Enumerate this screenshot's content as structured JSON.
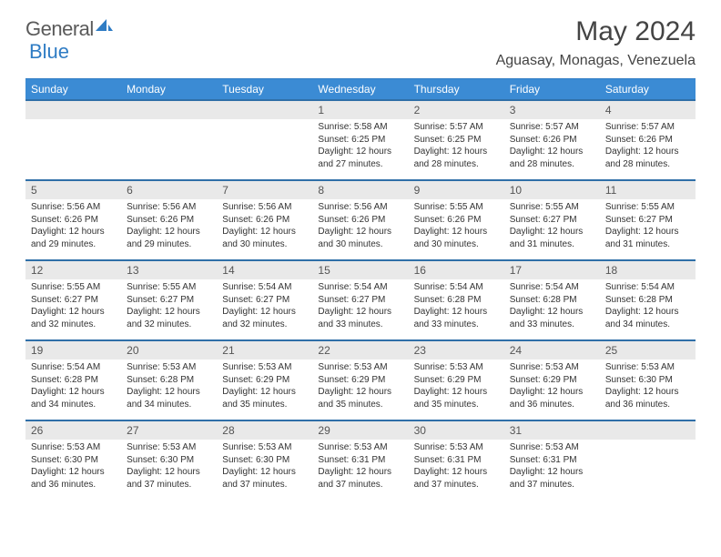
{
  "brand": {
    "name_part1": "General",
    "name_part2": "Blue"
  },
  "title": "May 2024",
  "location": "Aguasay, Monagas, Venezuela",
  "colors": {
    "header_bg": "#3b8bd4",
    "divider": "#2f7cc4",
    "daynum_bg": "#e9e9e9",
    "row_border": "#2f6fa8",
    "text": "#333333",
    "background": "#ffffff"
  },
  "day_headers": [
    "Sunday",
    "Monday",
    "Tuesday",
    "Wednesday",
    "Thursday",
    "Friday",
    "Saturday"
  ],
  "weeks": [
    [
      {
        "n": "",
        "sr": "",
        "ss": "",
        "dl": ""
      },
      {
        "n": "",
        "sr": "",
        "ss": "",
        "dl": ""
      },
      {
        "n": "",
        "sr": "",
        "ss": "",
        "dl": ""
      },
      {
        "n": "1",
        "sr": "Sunrise: 5:58 AM",
        "ss": "Sunset: 6:25 PM",
        "dl": "Daylight: 12 hours and 27 minutes."
      },
      {
        "n": "2",
        "sr": "Sunrise: 5:57 AM",
        "ss": "Sunset: 6:25 PM",
        "dl": "Daylight: 12 hours and 28 minutes."
      },
      {
        "n": "3",
        "sr": "Sunrise: 5:57 AM",
        "ss": "Sunset: 6:26 PM",
        "dl": "Daylight: 12 hours and 28 minutes."
      },
      {
        "n": "4",
        "sr": "Sunrise: 5:57 AM",
        "ss": "Sunset: 6:26 PM",
        "dl": "Daylight: 12 hours and 28 minutes."
      }
    ],
    [
      {
        "n": "5",
        "sr": "Sunrise: 5:56 AM",
        "ss": "Sunset: 6:26 PM",
        "dl": "Daylight: 12 hours and 29 minutes."
      },
      {
        "n": "6",
        "sr": "Sunrise: 5:56 AM",
        "ss": "Sunset: 6:26 PM",
        "dl": "Daylight: 12 hours and 29 minutes."
      },
      {
        "n": "7",
        "sr": "Sunrise: 5:56 AM",
        "ss": "Sunset: 6:26 PM",
        "dl": "Daylight: 12 hours and 30 minutes."
      },
      {
        "n": "8",
        "sr": "Sunrise: 5:56 AM",
        "ss": "Sunset: 6:26 PM",
        "dl": "Daylight: 12 hours and 30 minutes."
      },
      {
        "n": "9",
        "sr": "Sunrise: 5:55 AM",
        "ss": "Sunset: 6:26 PM",
        "dl": "Daylight: 12 hours and 30 minutes."
      },
      {
        "n": "10",
        "sr": "Sunrise: 5:55 AM",
        "ss": "Sunset: 6:27 PM",
        "dl": "Daylight: 12 hours and 31 minutes."
      },
      {
        "n": "11",
        "sr": "Sunrise: 5:55 AM",
        "ss": "Sunset: 6:27 PM",
        "dl": "Daylight: 12 hours and 31 minutes."
      }
    ],
    [
      {
        "n": "12",
        "sr": "Sunrise: 5:55 AM",
        "ss": "Sunset: 6:27 PM",
        "dl": "Daylight: 12 hours and 32 minutes."
      },
      {
        "n": "13",
        "sr": "Sunrise: 5:55 AM",
        "ss": "Sunset: 6:27 PM",
        "dl": "Daylight: 12 hours and 32 minutes."
      },
      {
        "n": "14",
        "sr": "Sunrise: 5:54 AM",
        "ss": "Sunset: 6:27 PM",
        "dl": "Daylight: 12 hours and 32 minutes."
      },
      {
        "n": "15",
        "sr": "Sunrise: 5:54 AM",
        "ss": "Sunset: 6:27 PM",
        "dl": "Daylight: 12 hours and 33 minutes."
      },
      {
        "n": "16",
        "sr": "Sunrise: 5:54 AM",
        "ss": "Sunset: 6:28 PM",
        "dl": "Daylight: 12 hours and 33 minutes."
      },
      {
        "n": "17",
        "sr": "Sunrise: 5:54 AM",
        "ss": "Sunset: 6:28 PM",
        "dl": "Daylight: 12 hours and 33 minutes."
      },
      {
        "n": "18",
        "sr": "Sunrise: 5:54 AM",
        "ss": "Sunset: 6:28 PM",
        "dl": "Daylight: 12 hours and 34 minutes."
      }
    ],
    [
      {
        "n": "19",
        "sr": "Sunrise: 5:54 AM",
        "ss": "Sunset: 6:28 PM",
        "dl": "Daylight: 12 hours and 34 minutes."
      },
      {
        "n": "20",
        "sr": "Sunrise: 5:53 AM",
        "ss": "Sunset: 6:28 PM",
        "dl": "Daylight: 12 hours and 34 minutes."
      },
      {
        "n": "21",
        "sr": "Sunrise: 5:53 AM",
        "ss": "Sunset: 6:29 PM",
        "dl": "Daylight: 12 hours and 35 minutes."
      },
      {
        "n": "22",
        "sr": "Sunrise: 5:53 AM",
        "ss": "Sunset: 6:29 PM",
        "dl": "Daylight: 12 hours and 35 minutes."
      },
      {
        "n": "23",
        "sr": "Sunrise: 5:53 AM",
        "ss": "Sunset: 6:29 PM",
        "dl": "Daylight: 12 hours and 35 minutes."
      },
      {
        "n": "24",
        "sr": "Sunrise: 5:53 AM",
        "ss": "Sunset: 6:29 PM",
        "dl": "Daylight: 12 hours and 36 minutes."
      },
      {
        "n": "25",
        "sr": "Sunrise: 5:53 AM",
        "ss": "Sunset: 6:30 PM",
        "dl": "Daylight: 12 hours and 36 minutes."
      }
    ],
    [
      {
        "n": "26",
        "sr": "Sunrise: 5:53 AM",
        "ss": "Sunset: 6:30 PM",
        "dl": "Daylight: 12 hours and 36 minutes."
      },
      {
        "n": "27",
        "sr": "Sunrise: 5:53 AM",
        "ss": "Sunset: 6:30 PM",
        "dl": "Daylight: 12 hours and 37 minutes."
      },
      {
        "n": "28",
        "sr": "Sunrise: 5:53 AM",
        "ss": "Sunset: 6:30 PM",
        "dl": "Daylight: 12 hours and 37 minutes."
      },
      {
        "n": "29",
        "sr": "Sunrise: 5:53 AM",
        "ss": "Sunset: 6:31 PM",
        "dl": "Daylight: 12 hours and 37 minutes."
      },
      {
        "n": "30",
        "sr": "Sunrise: 5:53 AM",
        "ss": "Sunset: 6:31 PM",
        "dl": "Daylight: 12 hours and 37 minutes."
      },
      {
        "n": "31",
        "sr": "Sunrise: 5:53 AM",
        "ss": "Sunset: 6:31 PM",
        "dl": "Daylight: 12 hours and 37 minutes."
      },
      {
        "n": "",
        "sr": "",
        "ss": "",
        "dl": ""
      }
    ]
  ]
}
